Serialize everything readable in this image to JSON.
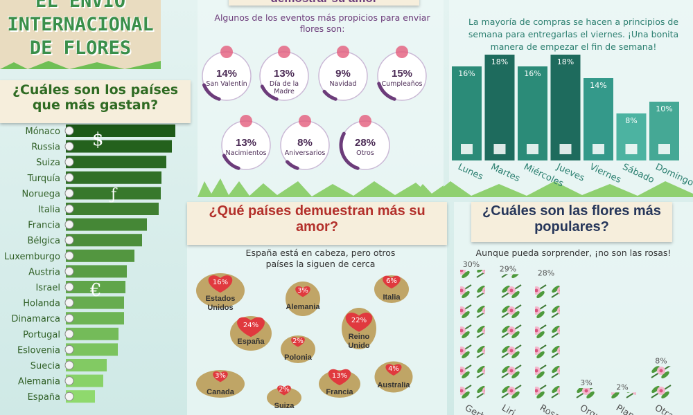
{
  "header": {
    "title_lines": [
      "EL ENVIO",
      "INTERNACIONAL",
      "DE FLORES"
    ]
  },
  "chart_data": [
    {
      "type": "hbar",
      "title": "¿Cuáles son los países que más gastan?",
      "symbols": [
        "$",
        "ƒ",
        "€"
      ],
      "categories": [
        "Mónaco",
        "Russia",
        "Suiza",
        "Turquía",
        "Noruega",
        "Italia",
        "Francia",
        "Bélgica",
        "Luxemburgo",
        "Austria",
        "Israel",
        "Holanda",
        "Dinamarca",
        "Portugal",
        "Eslovenia",
        "Suecia",
        "Alemania",
        "España"
      ],
      "values": [
        158,
        153,
        145,
        138,
        137,
        134,
        117,
        110,
        99,
        88,
        86,
        84,
        84,
        76,
        75,
        59,
        54,
        42
      ],
      "xlim": [
        0,
        160
      ],
      "colors": [
        "#1d5a18",
        "#8fd96d"
      ]
    },
    {
      "type": "ring",
      "title": "demostrar su amor",
      "subtitle": "Algunos de los eventos más propicios para enviar flores son:",
      "categories": [
        "San Valentín",
        "Día de la Madre",
        "Navidad",
        "Cumpleaños",
        "Nacimientos",
        "Aniversarios",
        "Otros"
      ],
      "values": [
        14,
        13,
        9,
        15,
        13,
        8,
        28
      ],
      "value_labels": [
        "14%",
        "13%",
        "9%",
        "15%",
        "13%",
        "8%",
        "28%"
      ],
      "color": "#6c3c7a"
    },
    {
      "type": "bar",
      "subtitle": "La mayoría de compras se hacen a principios de semana para entregarlas el viernes. ¡Una bonita manera de empezar el fin de semana!",
      "categories": [
        "Lunes",
        "Martes",
        "Miércoles",
        "Jueves",
        "Viernes",
        "Sábado",
        "Domingo"
      ],
      "values": [
        16,
        18,
        16,
        18,
        14,
        8,
        10
      ],
      "value_labels": [
        "16%",
        "18%",
        "16%",
        "18%",
        "14%",
        "8%",
        "10%"
      ],
      "ylim": [
        0,
        20
      ],
      "colors": [
        "#2b8b78",
        "#1e6b5d",
        "#2b8b78",
        "#1e6b5d",
        "#34998a",
        "#4cb3a1",
        "#45a895"
      ]
    },
    {
      "type": "hearts",
      "title": "¿Qué países demuestran más su amor?",
      "subtitle": "España está en cabeza, pero otros países la siguen de cerca",
      "categories": [
        "Estados Unidos",
        "Alemania",
        "Italia",
        "España",
        "Reino Unido",
        "Polonia",
        "Canada",
        "Suiza",
        "Francia",
        "Australia"
      ],
      "values": [
        16,
        3,
        6,
        24,
        22,
        2,
        3,
        2,
        13,
        4
      ],
      "value_labels": [
        "16%",
        "3%",
        "6%",
        "24%",
        "22%",
        "2%",
        "3%",
        "2%",
        "13%",
        "4%"
      ],
      "color": "#e0393e"
    },
    {
      "type": "pictogram",
      "title": "¿Cuáles son las flores más populares?",
      "subtitle": "Aunque pueda sorprender, ¡no son las rosas!",
      "categories": [
        "Gerb",
        "Liri",
        "Rosa",
        "Orqu",
        "Plan",
        "Otra"
      ],
      "values": [
        30,
        29,
        28,
        3,
        2,
        8
      ],
      "value_labels": [
        "30%",
        "29%",
        "28%",
        "3%",
        "2%",
        "8%"
      ],
      "ylim": [
        0,
        30
      ]
    }
  ]
}
